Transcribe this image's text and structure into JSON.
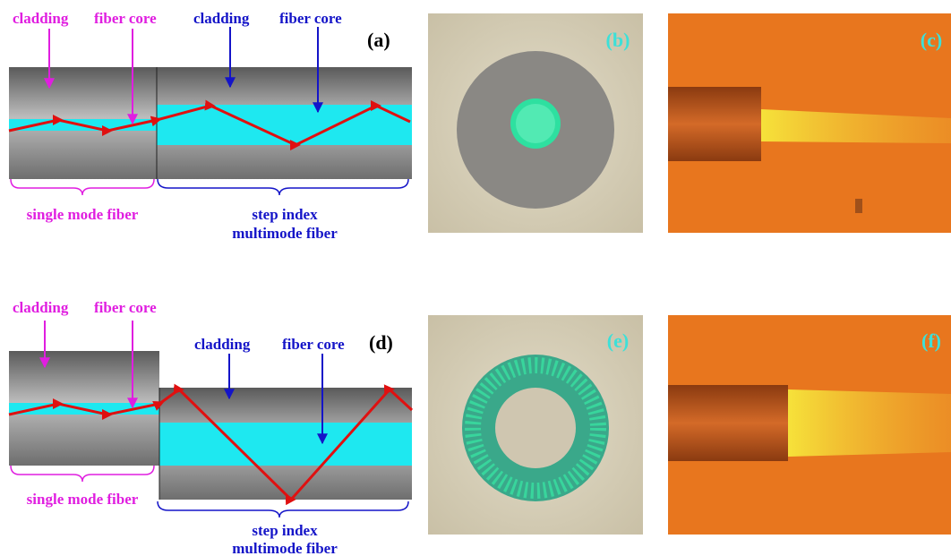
{
  "panel_a": {
    "label": "(a)",
    "smf": {
      "cladding": "cladding",
      "core": "fiber core",
      "caption": "single mode fiber"
    },
    "mmf": {
      "cladding": "cladding",
      "core": "fiber core",
      "caption_lines": [
        "step index",
        "multimode fiber"
      ]
    }
  },
  "panel_b": {
    "label": "(b)"
  },
  "panel_c": {
    "label": "(c)"
  },
  "panel_d": {
    "label": "(d)",
    "smf": {
      "cladding": "cladding",
      "core": "fiber core",
      "caption": "single mode fiber"
    },
    "mmf": {
      "cladding": "cladding",
      "core": "fiber core",
      "caption_lines": [
        "step index",
        "multimode fiber"
      ]
    }
  },
  "panel_e": {
    "label": "(e)"
  },
  "panel_f": {
    "label": "(f)"
  }
}
